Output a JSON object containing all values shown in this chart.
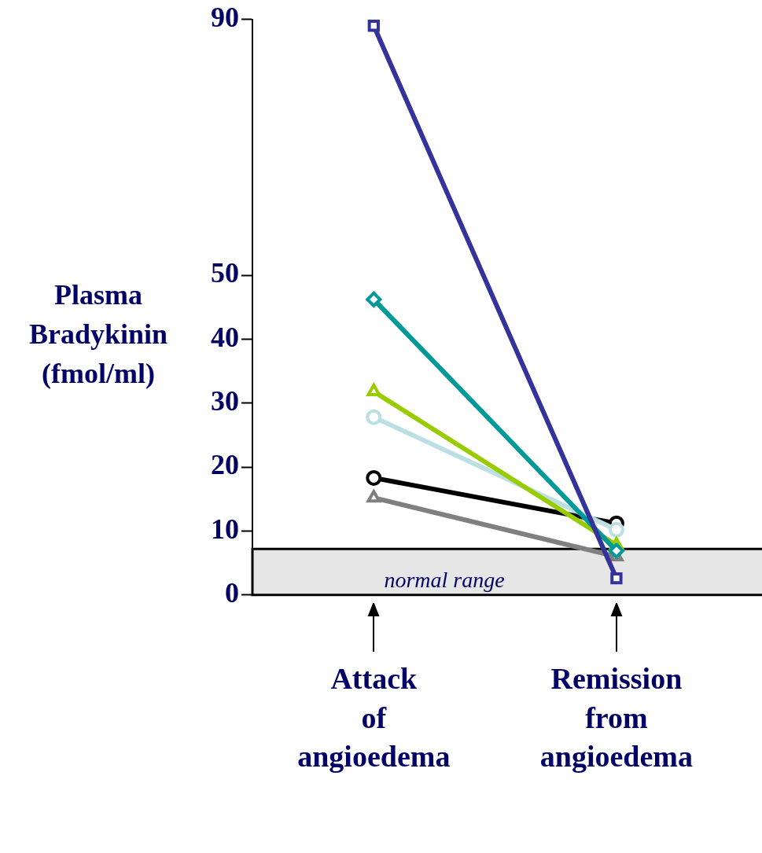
{
  "chart_data": {
    "type": "line",
    "ylabel": "Plasma Bradykinin (fmol/ml)",
    "categories": [
      "Attack of angioedema",
      "Remission from angioedema"
    ],
    "series": [
      {
        "color": "#333399",
        "values": [
          89,
          2.6
        ],
        "marker": "square"
      },
      {
        "color": "#009999",
        "values": [
          46.2,
          6.9
        ],
        "marker": "diamond"
      },
      {
        "color": "#99cc00",
        "values": [
          31.8,
          7.8
        ],
        "marker": "triangle"
      },
      {
        "color": "#bbdfe3",
        "values": [
          27.8,
          10.2
        ],
        "marker": "circle"
      },
      {
        "color": "#000000",
        "values": [
          18.3,
          11.2
        ],
        "marker": "circle"
      },
      {
        "color": "#808080",
        "values": [
          15.2,
          6.0
        ],
        "marker": "triangle"
      }
    ],
    "ylim": [
      0,
      90
    ],
    "yticks": [
      0,
      10,
      20,
      30,
      40,
      50,
      90
    ],
    "bands": [
      {
        "axis": "y",
        "from": 0,
        "to": 7.2,
        "label": "normal range",
        "color": "#e6e6e6"
      }
    ],
    "grid": false,
    "legend": false
  }
}
